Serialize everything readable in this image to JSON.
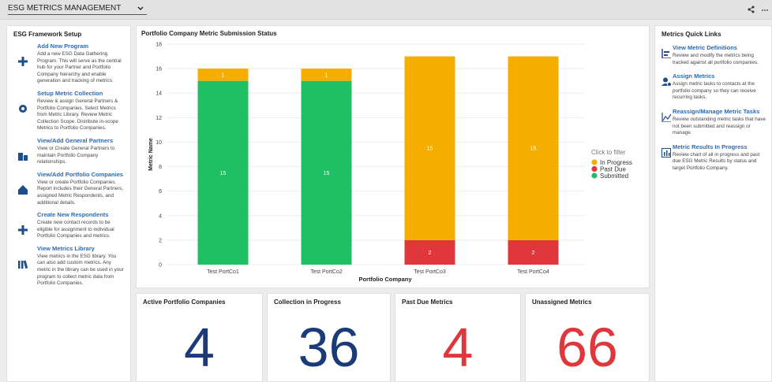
{
  "header": {
    "title": "ESG METRICS MANAGEMENT"
  },
  "left_panel": {
    "title": "ESG Framework Setup",
    "items": [
      {
        "title": "Add New Program",
        "text": "Add a new ESG Data Gathering Program. This will serve as the central hub for your Partner and Portfolio Company hierarchy and enable generation and tracking of metrics."
      },
      {
        "title": "Setup Metric Collection",
        "text": "Review & assign General Partners & Portfolio Companies. Select Metrics from Metric Library. Review Metric Collection Scope. Distribute in-scope Metrics to Portfolio Companies."
      },
      {
        "title": "View/Add General Partners",
        "text": "View or Create General Partners to maintain Portfolio Company relationships."
      },
      {
        "title": "View/Add Portfolio Companies",
        "text": "View or create Portfolio Companies. Report includes their General Partners, assigned Metric Respondents, and additional details."
      },
      {
        "title": "Create New Respondents",
        "text": "Create new contact records to be eligible for assignment to individual Portfolio Companies and metrics."
      },
      {
        "title": "View Metrics Library",
        "text": "View metrics in the ESG library. You can also add custom metrics. Any metric in the library can be used in your program to collect metric data from Portfolio Companies."
      }
    ]
  },
  "chart_data": {
    "type": "stacked_bar",
    "title": "Portfolio Company Metric Submission Status",
    "xlabel": "Portfolio Company",
    "ylabel": "Metric Name",
    "categories": [
      "Test PortCo1",
      "Test PortCo2",
      "Test PortCo3",
      "Test PortCo4"
    ],
    "series": [
      {
        "name": "In Progress",
        "color": "#f7ad00",
        "values": [
          1,
          1,
          15,
          15
        ]
      },
      {
        "name": "Past Due",
        "color": "#e0373d",
        "values": [
          null,
          null,
          2,
          2
        ]
      },
      {
        "name": "Submitted",
        "color": "#1ec063",
        "values": [
          15,
          15,
          null,
          null
        ]
      }
    ],
    "ylim": [
      0,
      18
    ],
    "yticks": [
      0,
      2,
      4,
      6,
      8,
      10,
      12,
      14,
      16,
      18
    ],
    "grid": true,
    "legend_title": "Click to filter",
    "legend": "right"
  },
  "kpis": [
    {
      "title": "Active Portfolio Companies",
      "value": "4",
      "color": "#1b3a78"
    },
    {
      "title": "Collection in Progress",
      "value": "36",
      "color": "#1b3a78"
    },
    {
      "title": "Past Due Metrics",
      "value": "4",
      "color": "#e0373d"
    },
    {
      "title": "Unassigned Metrics",
      "value": "66",
      "color": "#e0373d"
    }
  ],
  "right_panel": {
    "title": "Metrics Quick Links",
    "items": [
      {
        "title": "View Metric Definitions",
        "text": "Review and modify the metrics being tracked against all portfolio companies."
      },
      {
        "title": "Assign Metrics",
        "text": "Assign metric tasks to contacts at the portfolio company so they can receive recurring tasks."
      },
      {
        "title": "Reassign/Manage Metric Tasks",
        "text": "Review outstanding metric tasks that have not been submitted and reassign or manage."
      },
      {
        "title": "Metric Results In Progress",
        "text": "Review chart of all in progress and past due ESG Metric Results by status and target Portfolio Company."
      }
    ]
  }
}
